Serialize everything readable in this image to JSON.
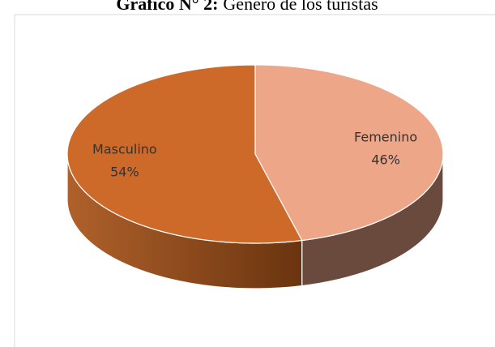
{
  "chart_data": {
    "type": "pie3d",
    "title_bold": "Gráfico N° 2:",
    "title": "Género de los turistas",
    "categories": [
      "Femenino",
      "Masculino"
    ],
    "values": [
      46,
      54
    ],
    "value_labels": [
      "46%",
      "54%"
    ],
    "colors": [
      "#eda688",
      "#cd6a2a"
    ],
    "side_colors": [
      "#6b4a3e",
      "#85451a"
    ]
  }
}
